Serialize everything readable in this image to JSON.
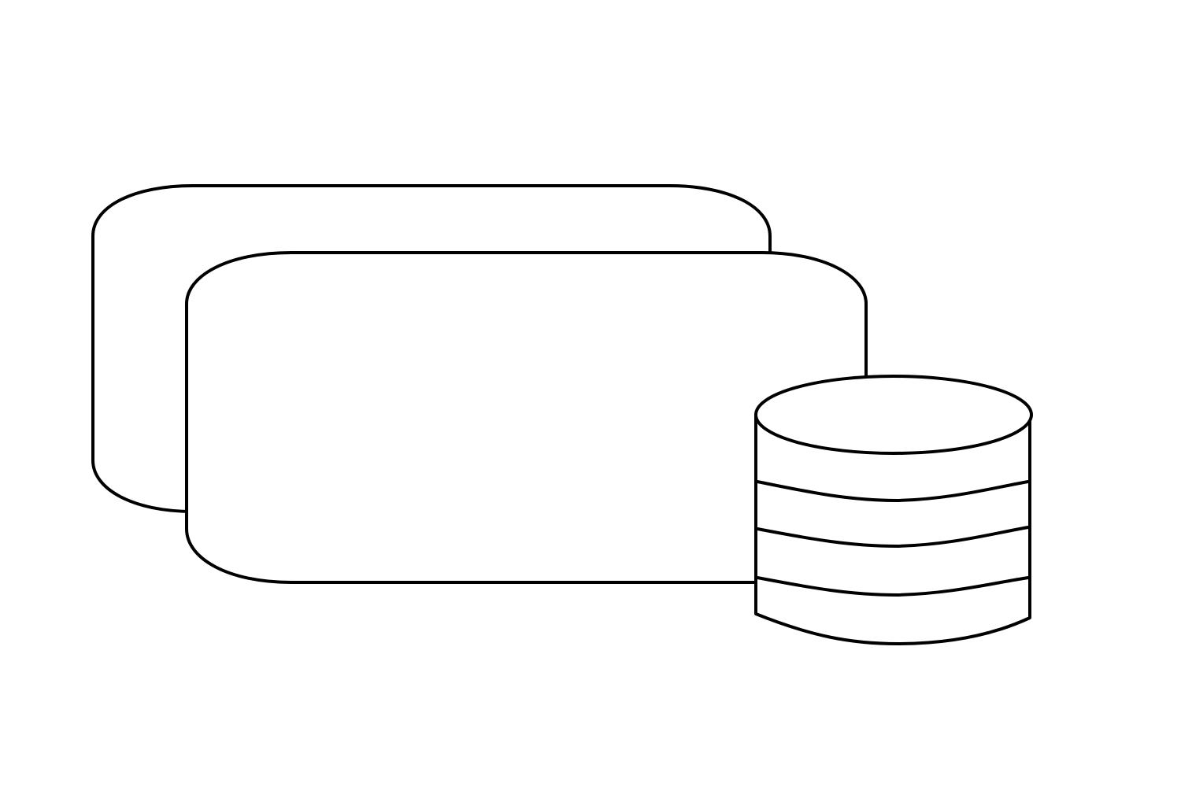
{
  "diagram": {
    "background_color": "#ffffff",
    "stroke_color": "#000000",
    "shapes": [
      {
        "name": "back-rounded-panel",
        "kind": "rounded-rectangle",
        "label": ""
      },
      {
        "name": "front-rounded-panel",
        "kind": "rounded-rectangle",
        "label": ""
      },
      {
        "name": "database-icon",
        "kind": "cylinder",
        "bands": 3,
        "label": ""
      }
    ]
  }
}
